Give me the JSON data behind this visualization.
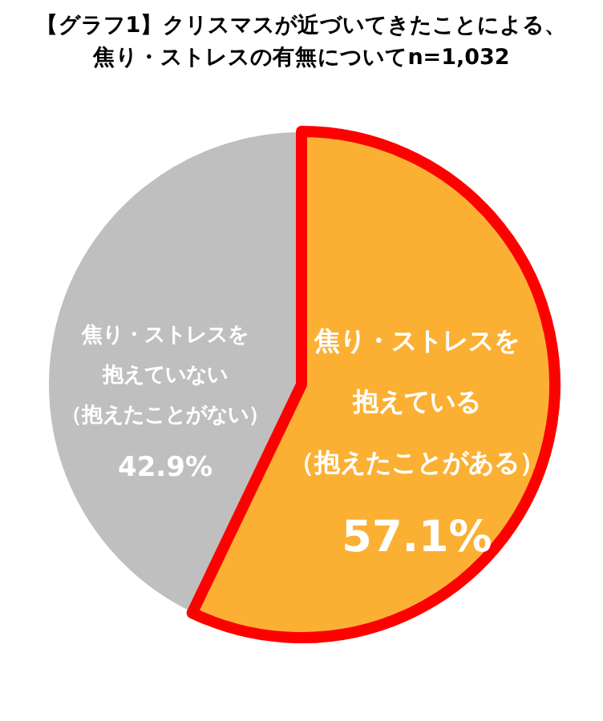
{
  "chart_data": {
    "type": "pie",
    "title": "【グラフ1】クリスマスが近づいてきたことによる、焦り・ストレスの有無についてn=1,032",
    "categories": [
      "焦り・ストレスを抱えている（抱えたことがある）",
      "焦り・ストレスを抱えていない（抱えたことがない）"
    ],
    "values": [
      57.1,
      42.9
    ],
    "colors": [
      "#fbb034",
      "#bfbfbf"
    ],
    "value_labels": [
      "57.1%",
      "42.9%"
    ]
  }
}
